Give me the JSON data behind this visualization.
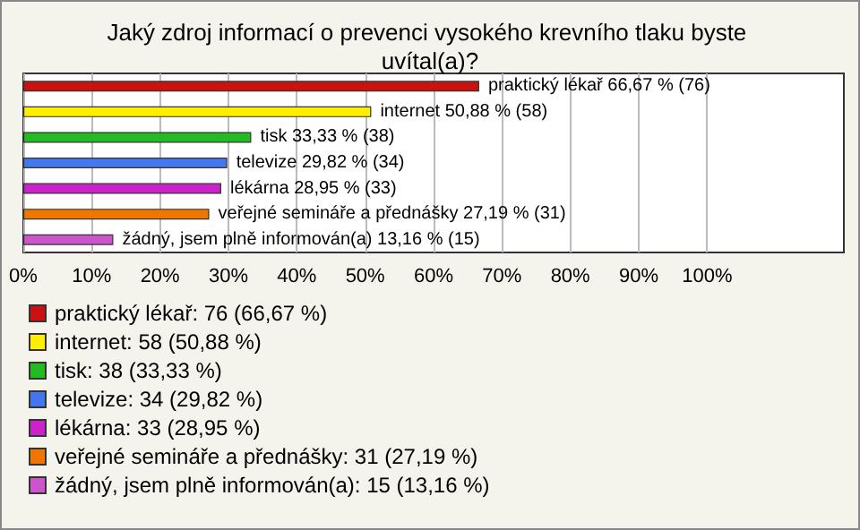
{
  "chart_data": {
    "type": "bar",
    "orientation": "horizontal",
    "title": "Jaký zdroj informací o prevenci vysokého krevního tlaku byste uvítal(a)?",
    "categories": [
      null,
      null,
      null,
      null,
      null,
      null,
      null
    ],
    "series": [
      {
        "name": "praktický lékař: 76 (66,67 %)",
        "color": "#cc1111",
        "values": [
          66.67,
          null,
          null,
          null,
          null,
          null,
          null
        ],
        "value_labels": [
          "praktický lékař 66,67 % (76)",
          null,
          null,
          null,
          null,
          null,
          null
        ]
      },
      {
        "name": "internet: 58 (50,88 %)",
        "color": "#ffee00",
        "values": [
          null,
          50.88,
          null,
          null,
          null,
          null,
          null
        ],
        "value_labels": [
          null,
          "internet 50,88 % (58)",
          null,
          null,
          null,
          null,
          null
        ]
      },
      {
        "name": "tisk: 38 (33,33 %)",
        "color": "#22bb22",
        "values": [
          null,
          null,
          33.33,
          null,
          null,
          null,
          null
        ],
        "value_labels": [
          null,
          null,
          "tisk 33,33 % (38)",
          null,
          null,
          null,
          null
        ]
      },
      {
        "name": "televize: 34 (29,82 %)",
        "color": "#4477ee",
        "values": [
          null,
          null,
          null,
          29.82,
          null,
          null,
          null
        ],
        "value_labels": [
          null,
          null,
          null,
          "televize 29,82 % (34)",
          null,
          null,
          null
        ]
      },
      {
        "name": "lékárna: 33 (28,95 %)",
        "color": "#cc22cc",
        "values": [
          null,
          null,
          null,
          null,
          28.95,
          null,
          null
        ],
        "value_labels": [
          null,
          null,
          null,
          null,
          "lékárna 28,95 % (33)",
          null,
          null
        ]
      },
      {
        "name": "veřejné semináře a přednášky: 31 (27,19 %)",
        "color": "#ee7700",
        "values": [
          null,
          null,
          null,
          null,
          null,
          27.19,
          null
        ],
        "value_labels": [
          null,
          null,
          null,
          null,
          null,
          "veřejné semináře a přednášky 27,19 % (31)",
          null
        ]
      },
      {
        "name": "žádný, jsem plně informován(a): 15 (13,16 %)",
        "color": "#cc55cc",
        "values": [
          null,
          null,
          null,
          null,
          null,
          null,
          13.16
        ],
        "value_labels": [
          null,
          null,
          null,
          null,
          null,
          null,
          "žádný, jsem plně informován(a) 13,16 % (15)"
        ]
      }
    ],
    "xlim": [
      0,
      120
    ],
    "xticks": [
      {
        "value": 0,
        "label": "0%"
      },
      {
        "value": 10,
        "label": "10%"
      },
      {
        "value": 20,
        "label": "20%"
      },
      {
        "value": 30,
        "label": "30%"
      },
      {
        "value": 40,
        "label": "40%"
      },
      {
        "value": 50,
        "label": "50%"
      },
      {
        "value": 60,
        "label": "60%"
      },
      {
        "value": 70,
        "label": "70%"
      },
      {
        "value": 80,
        "label": "80%"
      },
      {
        "value": 90,
        "label": "90%"
      },
      {
        "value": 100,
        "label": "100%"
      }
    ],
    "grid": "x",
    "legend": "bottom"
  }
}
